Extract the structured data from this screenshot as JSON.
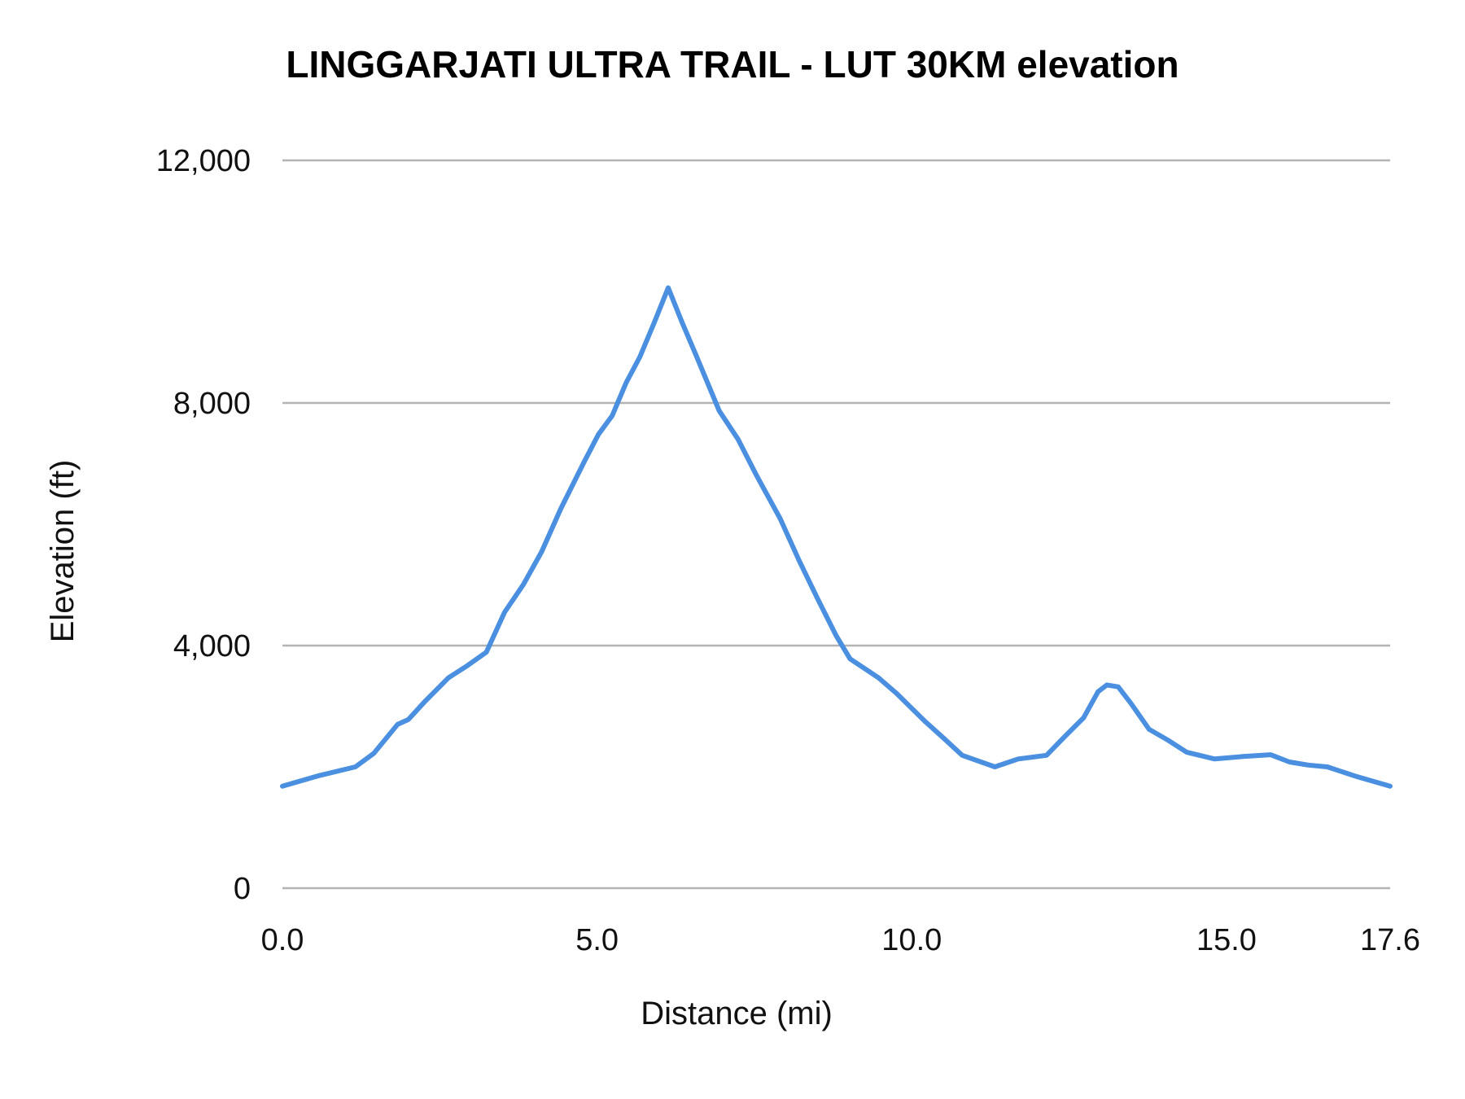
{
  "chart_data": {
    "type": "line",
    "title": "LINGGARJATI ULTRA TRAIL - LUT 30KM elevation",
    "xlabel": "Distance (mi)",
    "ylabel": "Elevation (ft)",
    "xlim": [
      0,
      17.6
    ],
    "ylim": [
      0,
      12000
    ],
    "x_ticks": [
      "0.0",
      "5.0",
      "10.0",
      "15.0",
      "17.6"
    ],
    "x_tick_values": [
      0,
      5,
      10,
      15,
      17.6
    ],
    "y_ticks": [
      "0",
      "4,000",
      "8,000",
      "12,000"
    ],
    "y_tick_values": [
      0,
      4000,
      8000,
      12000
    ],
    "grid": true,
    "legend": "none",
    "line_color": "#4a8fe0",
    "series": [
      {
        "x": [
          0,
          0.56,
          1.16,
          1.45,
          1.83,
          2.0,
          2.27,
          2.64,
          2.94,
          3.24,
          3.53,
          3.83,
          4.12,
          4.42,
          4.79,
          5.02,
          5.24,
          5.46,
          5.68,
          5.91,
          6.13,
          6.35,
          6.57,
          6.94,
          7.24,
          7.54,
          7.91,
          8.21,
          8.5,
          8.8,
          9.02,
          9.47,
          9.76,
          10.21,
          10.51,
          10.8,
          11.32,
          11.69,
          12.14,
          12.44,
          12.73,
          12.96,
          13.1,
          13.28,
          13.48,
          13.77,
          14.07,
          14.37,
          14.81,
          15.26,
          15.7,
          16.0,
          16.3,
          16.6,
          17.04,
          17.6
        ],
        "y": [
          1680,
          1850,
          2000,
          2220,
          2700,
          2780,
          3085,
          3470,
          3670,
          3890,
          4550,
          5010,
          5550,
          6250,
          7020,
          7480,
          7790,
          8330,
          8760,
          9330,
          9900,
          9330,
          8790,
          7870,
          7400,
          6790,
          6090,
          5400,
          4780,
          4160,
          3780,
          3470,
          3210,
          2750,
          2470,
          2190,
          2000,
          2130,
          2190,
          2510,
          2810,
          3240,
          3350,
          3320,
          3050,
          2620,
          2440,
          2240,
          2130,
          2170,
          2200,
          2080,
          2030,
          2000,
          1850,
          1680
        ]
      }
    ]
  }
}
